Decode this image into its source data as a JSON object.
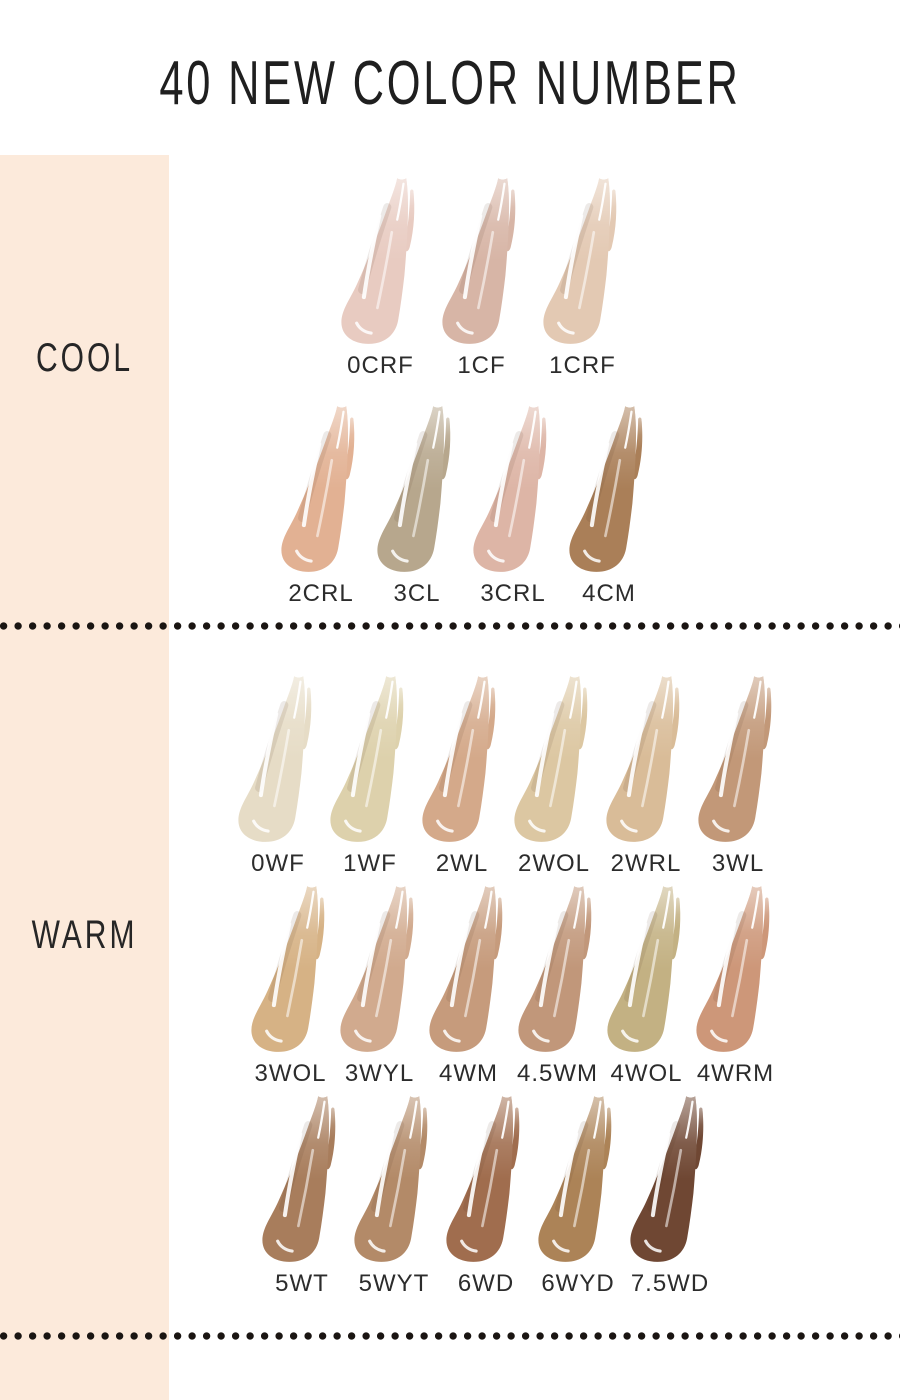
{
  "page": {
    "title": "40 NEW COLOR NUMBER",
    "colors": {
      "sidebar": "#fceadb",
      "dots": "#1a1512",
      "text": "#1f1f1f"
    }
  },
  "sections": [
    {
      "name": "COOL",
      "rows": [
        {
          "swatches": [
            {
              "label": "0CRF",
              "color": "#e8cbc1"
            },
            {
              "label": "1CF",
              "color": "#d7b5a6"
            },
            {
              "label": "1CRF",
              "color": "#e3c9b3"
            }
          ]
        },
        {
          "swatches": [
            {
              "label": "2CRL",
              "color": "#e2b193"
            },
            {
              "label": "3CL",
              "color": "#b7a78d"
            },
            {
              "label": "3CRL",
              "color": "#ddb5a6"
            },
            {
              "label": "4CM",
              "color": "#aa7f58"
            }
          ]
        }
      ]
    },
    {
      "name": "WARM",
      "rows": [
        {
          "swatches": [
            {
              "label": "0WF",
              "color": "#e6dcc6"
            },
            {
              "label": "1WF",
              "color": "#ddd1ac"
            },
            {
              "label": "2WL",
              "color": "#d4a98a"
            },
            {
              "label": "2WOL",
              "color": "#dcc7a2"
            },
            {
              "label": "2WRL",
              "color": "#d9bc98"
            },
            {
              "label": "3WL",
              "color": "#c29878"
            }
          ]
        },
        {
          "swatches": [
            {
              "label": "3WOL",
              "color": "#d6b285"
            },
            {
              "label": "3WYL",
              "color": "#d1aa8e"
            },
            {
              "label": "4WM",
              "color": "#c69b7c"
            },
            {
              "label": "4.5WM",
              "color": "#c1977a"
            },
            {
              "label": "4WOL",
              "color": "#c3b183"
            },
            {
              "label": "4WRM",
              "color": "#cd9779"
            }
          ]
        },
        {
          "swatches": [
            {
              "label": "5WT",
              "color": "#a87d5c"
            },
            {
              "label": "5WYT",
              "color": "#b38a68"
            },
            {
              "label": "6WD",
              "color": "#a06d4e"
            },
            {
              "label": "6WYD",
              "color": "#ac8357"
            },
            {
              "label": "7.5WD",
              "color": "#6f4733"
            }
          ]
        }
      ]
    }
  ]
}
